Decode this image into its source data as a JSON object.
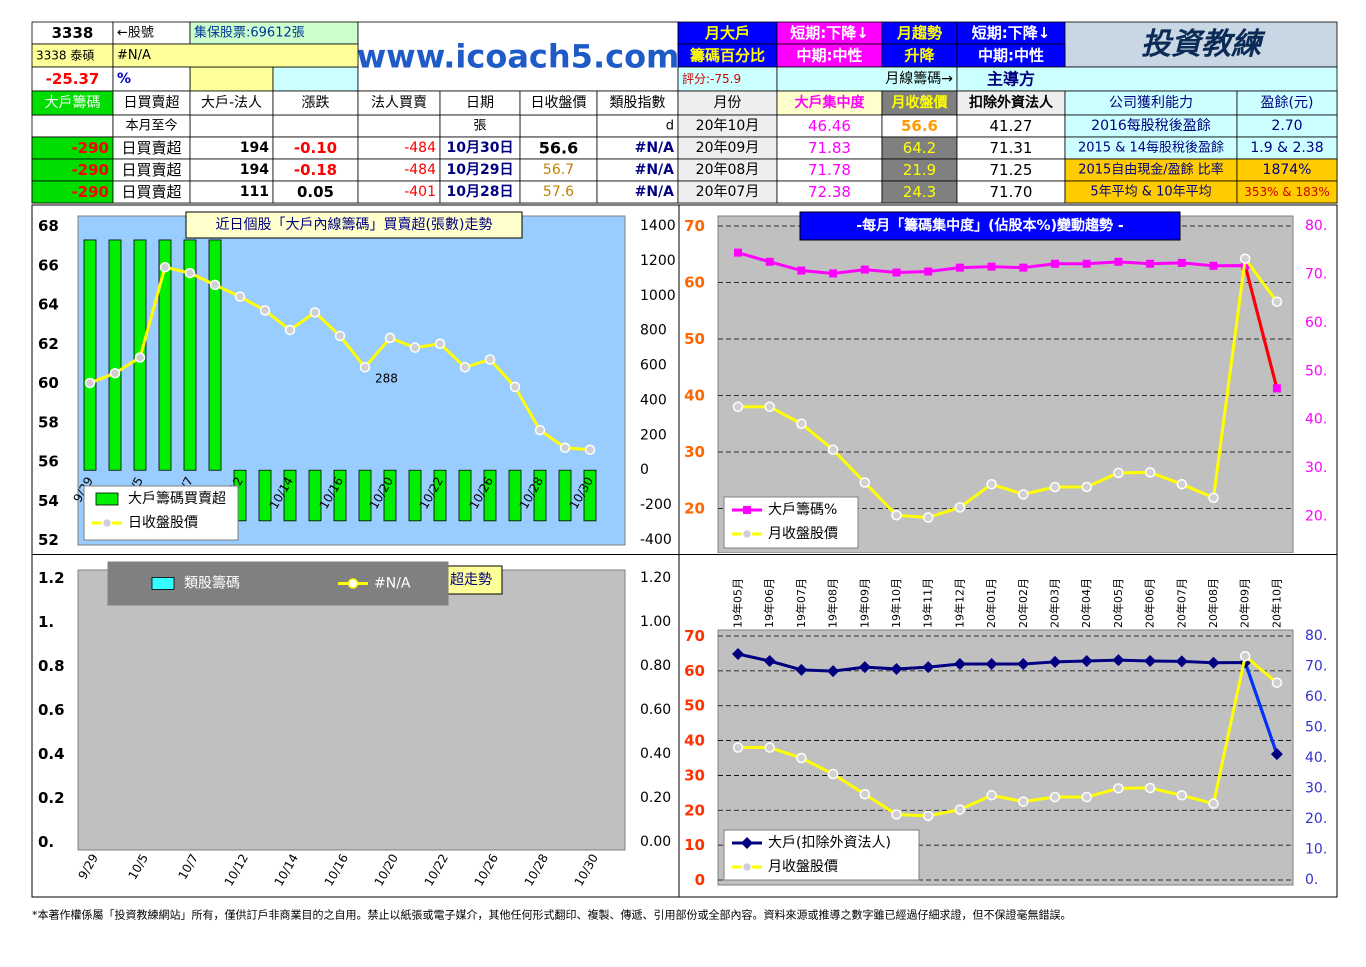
{
  "table": {
    "rows": [
      [
        "3338",
        "←股號",
        "集保股票:69612張",
        "www.icoach5.com",
        "月大戶",
        "短期:下降↓",
        "月趨勢",
        "短期:下降↓",
        "投資教練"
      ],
      [
        "3338 泰碩",
        "#N/A",
        "籌碼百分比",
        "中期:中性",
        "升降",
        "中期:中性"
      ],
      [
        "-25.37",
        "%",
        "評分:-75.9",
        "月線籌碼→",
        "主導方"
      ],
      [
        "大戶籌碼",
        "日買賣超",
        "大戶-法人",
        "漲跌",
        "法人買賣",
        "日期",
        "日收盤價",
        "類股指數",
        "月份",
        "大戶集中度",
        "月收盤價",
        "扣除外資法人",
        "公司獲利能力",
        "盈餘(元)"
      ],
      [
        "本月至今",
        "張",
        "d",
        "20年10月",
        "46.46",
        "56.6",
        "41.27",
        "2016每股稅後盈餘",
        "2.70"
      ],
      [
        "-290",
        "日買賣超",
        "194",
        "-0.10",
        "-484",
        "10月30日",
        "56.6",
        "#N/A",
        "20年09月",
        "71.83",
        "64.2",
        "71.31",
        "2015 & 14每股稅後盈餘",
        "1.9 & 2.38"
      ],
      [
        "-290",
        "日買賣超",
        "194",
        "-0.18",
        "-484",
        "10月29日",
        "56.7",
        "#N/A",
        "20年08月",
        "71.78",
        "21.9",
        "71.25",
        "2015自由現金/盈餘 比率",
        "1874%"
      ],
      [
        "-290",
        "日買賣超",
        "111",
        "0.05",
        "-401",
        "10月28日",
        "57.6",
        "#N/A",
        "20年07月",
        "72.38",
        "24.3",
        "71.70",
        "5年平均 & 10年平均",
        "353% & 183%"
      ]
    ]
  },
  "chart_data": [
    {
      "type": "combo",
      "title": "近日個股「大戶內線籌碼」買賣超(張數)走勢",
      "categories": [
        "9/29",
        null,
        "10/5",
        null,
        "10/7",
        null,
        "10/12",
        null,
        "10/14",
        null,
        "10/16",
        null,
        "10/20",
        null,
        "10/22",
        null,
        "10/26",
        null,
        "10/28",
        null,
        "10/30"
      ],
      "series": [
        {
          "name": "大戶籌碼買賣超",
          "type": "bar",
          "axis": "y2",
          "color": "#00ee00",
          "values": [
            1320,
            1320,
            1320,
            1320,
            1320,
            1320,
            -290,
            -290,
            -290,
            -290,
            -290,
            -290,
            -290,
            -290,
            -290,
            -290,
            -290,
            -290,
            -290,
            -290,
            -290
          ]
        },
        {
          "name": "日收盤股價",
          "type": "line",
          "color": "#ffff00",
          "marker": "circle",
          "values": [
            60.0,
            60.5,
            61.3,
            65.9,
            65.6,
            65.0,
            64.4,
            63.7,
            62.7,
            63.6,
            62.4,
            60.8,
            62.3,
            61.8,
            62.0,
            60.8,
            61.2,
            59.8,
            57.6,
            56.7,
            56.6
          ]
        }
      ],
      "annotations": [
        "288"
      ],
      "ylim": [
        52,
        68
      ],
      "yticks": [
        52,
        54,
        56,
        58,
        60,
        62,
        64,
        66,
        68
      ],
      "y2lim": [
        -400,
        1400
      ],
      "y2ticks": [
        -400,
        -200,
        0,
        200,
        400,
        600,
        800,
        1000,
        1200,
        1400
      ],
      "legend": "lower left"
    },
    {
      "type": "line",
      "title": "-每月「籌碼集中度」(佔股本%)變動趨勢 -",
      "series": [
        {
          "name": "大戶籌碼%",
          "type": "line",
          "axis": "y2",
          "color": "#ff00ff",
          "marker": "square",
          "last_segment_color": "#ff0000",
          "values": [
            74.5,
            72.6,
            70.8,
            70.2,
            71.0,
            70.4,
            70.6,
            71.4,
            71.6,
            71.4,
            72.2,
            72.2,
            72.6,
            72.2,
            72.38,
            71.78,
            71.83,
            46.46
          ]
        },
        {
          "name": "月收盤股價",
          "type": "line",
          "color": "#ffff00",
          "marker": "circle",
          "values": [
            38.0,
            38.0,
            35.0,
            30.4,
            24.6,
            18.8,
            18.4,
            20.2,
            24.3,
            22.5,
            23.8,
            23.8,
            26.3,
            26.4,
            24.3,
            21.9,
            64.2,
            56.6
          ]
        }
      ],
      "ylim": [
        10,
        70
      ],
      "yticks": [
        20,
        30,
        40,
        50,
        60,
        70
      ],
      "y2lim": [
        10,
        80
      ],
      "y2ticks": [
        {
          "value": 20,
          "label": "20."
        },
        {
          "value": 30,
          "label": "30."
        },
        {
          "value": 40,
          "label": "40."
        },
        {
          "value": 50,
          "label": "50."
        },
        {
          "value": 60,
          "label": "60."
        },
        {
          "value": 70,
          "label": "70."
        },
        {
          "value": 80,
          "label": "80."
        }
      ],
      "grid": true,
      "legend": "lower left"
    },
    {
      "type": "combo",
      "title": "超走勢",
      "categories": [
        "9/29",
        null,
        "10/5",
        null,
        "10/7",
        null,
        "10/12",
        null,
        "10/14",
        null,
        "10/16",
        null,
        "10/20",
        null,
        "10/22",
        null,
        "10/26",
        null,
        "10/28",
        null,
        "10/30"
      ],
      "series": [
        {
          "name": "類股籌碼",
          "type": "bar",
          "color": "#33ffff"
        },
        {
          "name": "#N/A",
          "type": "line",
          "color": "#ffff00",
          "marker": "circle"
        }
      ],
      "ylim": [
        0,
        1.2
      ],
      "yticks": [
        {
          "value": 0,
          "label": "0."
        },
        0.2,
        0.4,
        0.6,
        0.8,
        {
          "value": 1,
          "label": "1."
        },
        1.2
      ],
      "y2lim": [
        0,
        1.2
      ],
      "y2ticks": [
        {
          "value": 0,
          "label": "0.00"
        },
        {
          "value": 0.2,
          "label": "0.20"
        },
        {
          "value": 0.4,
          "label": "0.40"
        },
        {
          "value": 0.6,
          "label": "0.60"
        },
        {
          "value": 0.8,
          "label": "0.80"
        },
        {
          "value": 1,
          "label": "1.00"
        },
        {
          "value": 1.2,
          "label": "1.20"
        }
      ],
      "legend": "upper left"
    },
    {
      "type": "line",
      "categories": [
        "19年05月",
        "19年06月",
        "19年07月",
        "19年08月",
        "19年09月",
        "19年10月",
        "19年11月",
        "19年12月",
        "20年01月",
        "20年02月",
        "20年03月",
        "20年04月",
        "20年05月",
        "20年06月",
        "20年07月",
        "20年08月",
        "20年09月",
        "20年10月"
      ],
      "series": [
        {
          "name": "大戶(扣除外資法人)",
          "type": "line",
          "axis": "y2",
          "color": "#000080",
          "marker": "diamond",
          "last_segment_color": "#0033ff",
          "values": [
            74.1,
            71.8,
            68.9,
            68.5,
            69.8,
            69.2,
            69.8,
            70.8,
            70.8,
            70.8,
            71.5,
            71.8,
            72.1,
            71.8,
            71.7,
            71.25,
            71.31,
            41.27
          ]
        },
        {
          "name": "月收盤股價",
          "type": "line",
          "color": "#ffff00",
          "marker": "circle",
          "values": [
            38.0,
            38.0,
            35.0,
            30.4,
            24.6,
            18.8,
            18.4,
            20.2,
            24.3,
            22.5,
            23.8,
            23.8,
            26.3,
            26.4,
            24.3,
            21.9,
            64.2,
            56.6
          ]
        }
      ],
      "ylim": [
        0,
        70
      ],
      "yticks": [
        0,
        10,
        20,
        30,
        40,
        50,
        60,
        70
      ],
      "y2lim": [
        0,
        80
      ],
      "y2ticks": [
        {
          "value": 0,
          "label": "0."
        },
        {
          "value": 10,
          "label": "10."
        },
        {
          "value": 20,
          "label": "20."
        },
        {
          "value": 30,
          "label": "30."
        },
        {
          "value": 40,
          "label": "40."
        },
        {
          "value": 50,
          "label": "50."
        },
        {
          "value": 60,
          "label": "60."
        },
        {
          "value": 70,
          "label": "70."
        },
        {
          "value": 80,
          "label": "80."
        }
      ],
      "grid": true,
      "legend": "lower left"
    }
  ],
  "footer": "*本著作權係屬「投資教練網站」所有，僅供訂戶非商業目的之自用。禁止以紙張或電子媒介，其他任何形式翻印、複製、傳遞、引用部份或全部內容。資料來源或推導之數字雖已經過仔細求證，但不保證毫無錯誤。"
}
